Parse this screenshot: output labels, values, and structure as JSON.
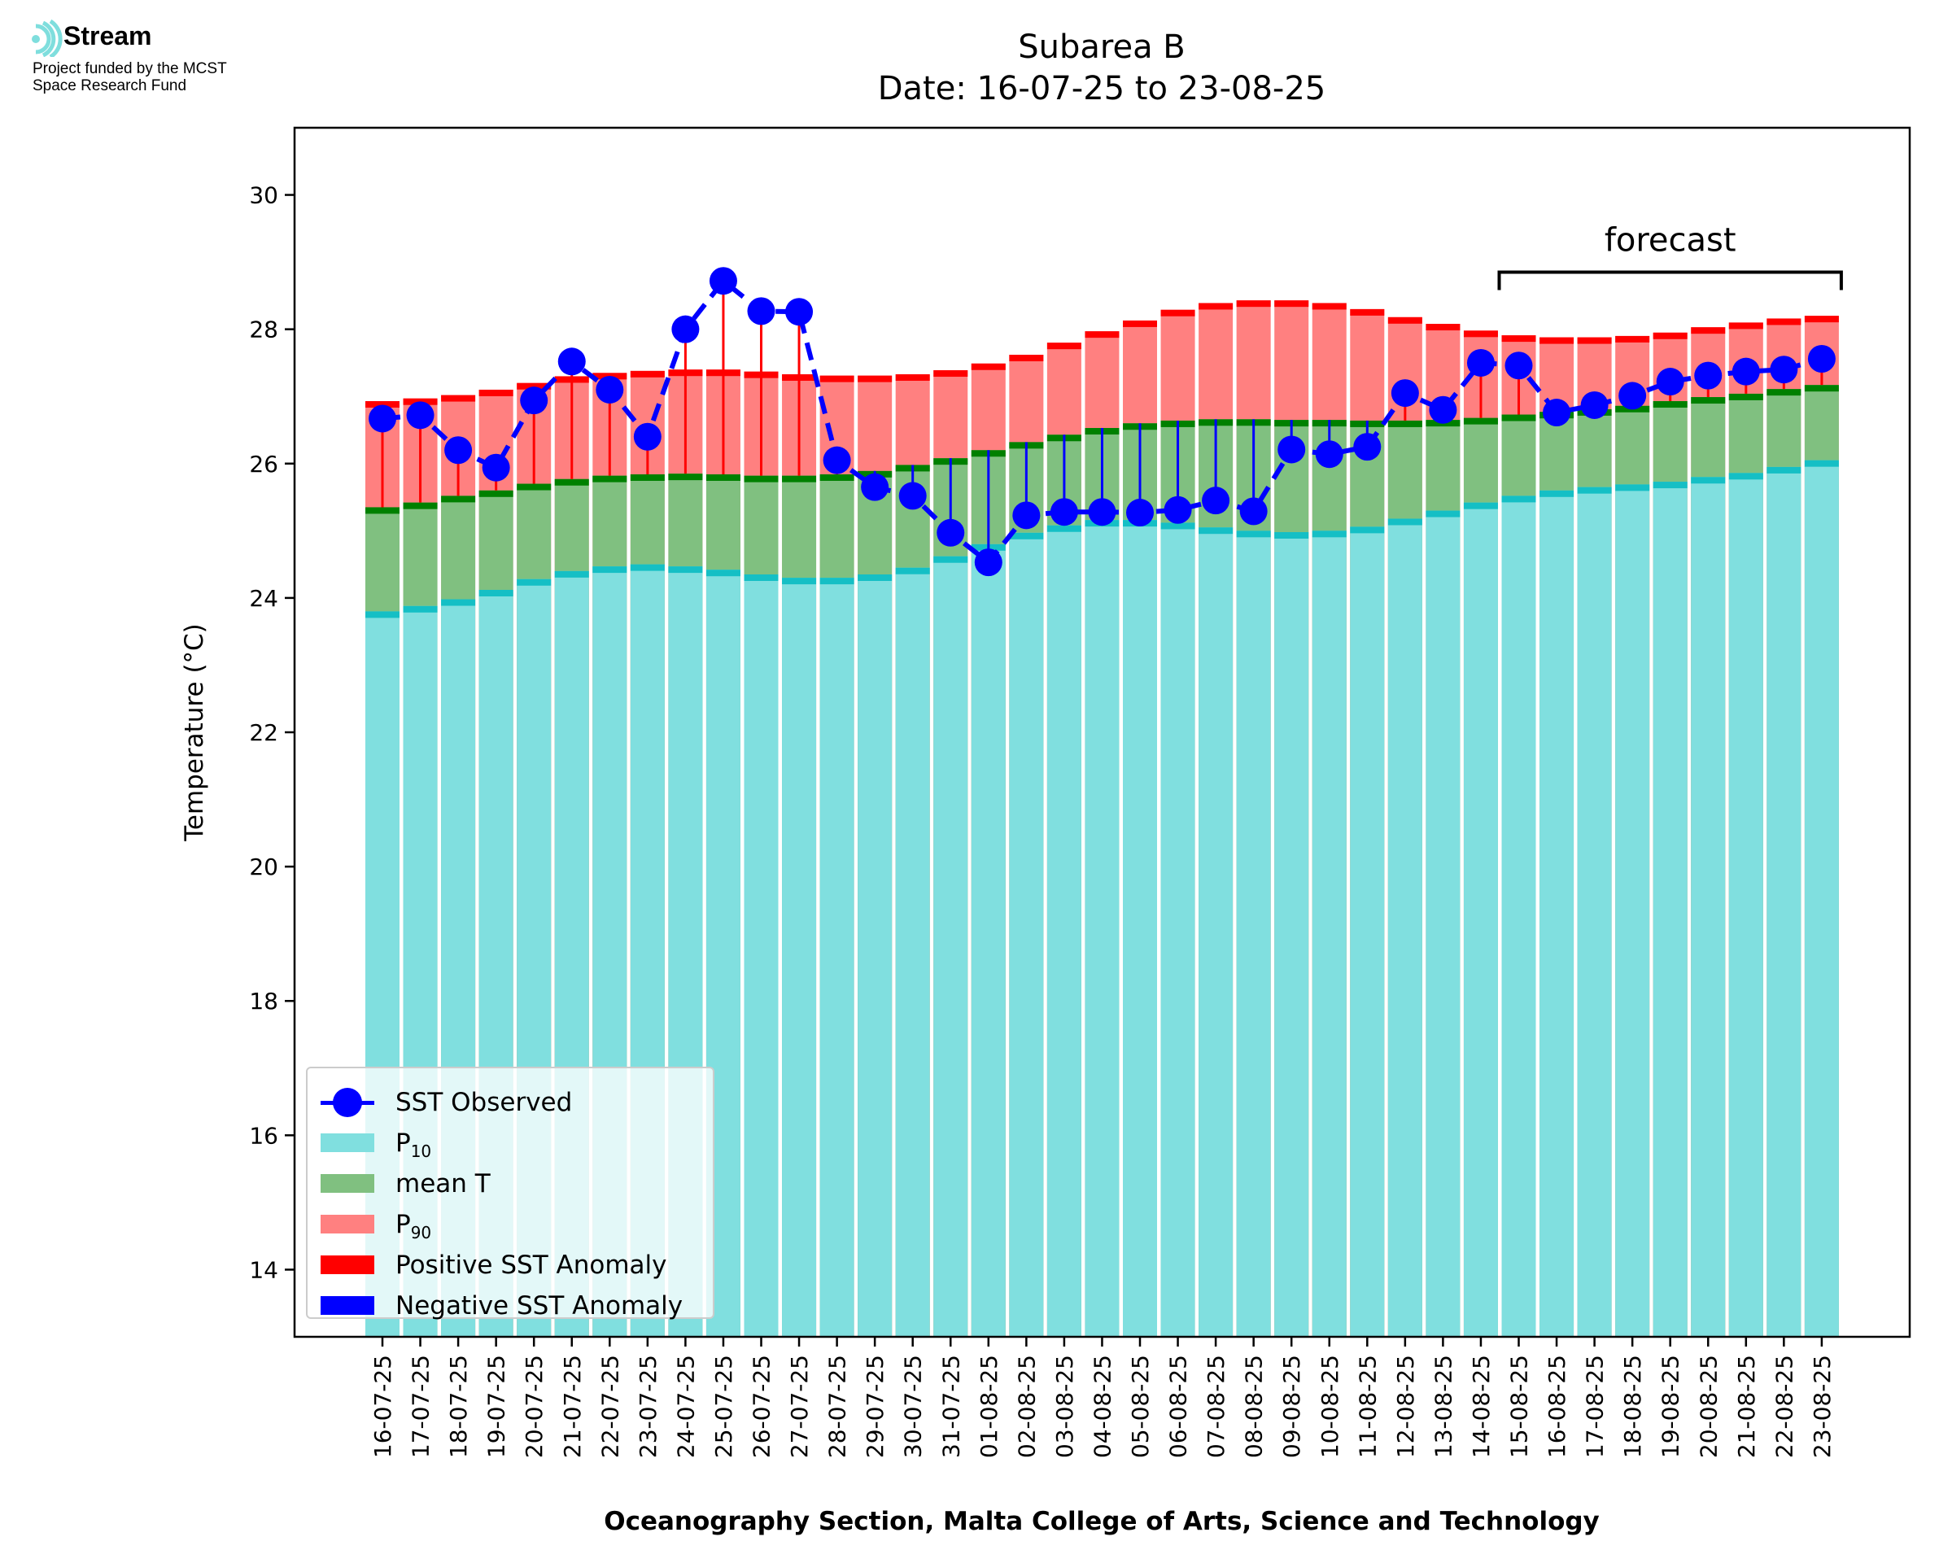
{
  "logo": {
    "brand": "Stream",
    "subtitle": "Project funded by the MCST\nSpace Research Fund",
    "icon": "stream-waves-icon",
    "icon_color": "#7fdedd"
  },
  "chart_data": {
    "type": "bar",
    "title": "Subarea B",
    "subtitle": "Date: 16-07-25 to 23-08-25",
    "xlabel": "Oceanography Section, Malta College of Arts, Science and Technology",
    "ylabel": "Temperature (°C)",
    "ylim": [
      13,
      31
    ],
    "yticks": [
      14,
      16,
      18,
      20,
      22,
      24,
      26,
      28,
      30
    ],
    "grid": false,
    "legend_position": "bottom-left",
    "annotation": {
      "text": "forecast",
      "from": "15-08-25",
      "to": "23-08-25"
    },
    "colors": {
      "p10": "#80dfdf",
      "p10_edge": "#15bfc5",
      "mean": "#80c080",
      "mean_edge": "#008000",
      "p90": "#ff8080",
      "p90_edge": "#ff0000",
      "observed": "#0000ff",
      "positive_anomaly": "#ff0000",
      "negative_anomaly": "#0000ff"
    },
    "categories": [
      "16-07-25",
      "17-07-25",
      "18-07-25",
      "19-07-25",
      "20-07-25",
      "21-07-25",
      "22-07-25",
      "23-07-25",
      "24-07-25",
      "25-07-25",
      "26-07-25",
      "27-07-25",
      "28-07-25",
      "29-07-25",
      "30-07-25",
      "31-07-25",
      "01-08-25",
      "02-08-25",
      "03-08-25",
      "04-08-25",
      "05-08-25",
      "06-08-25",
      "07-08-25",
      "08-08-25",
      "09-08-25",
      "10-08-25",
      "11-08-25",
      "12-08-25",
      "13-08-25",
      "14-08-25",
      "15-08-25",
      "16-08-25",
      "17-08-25",
      "18-08-25",
      "19-08-25",
      "20-08-25",
      "21-08-25",
      "22-08-25",
      "23-08-25"
    ],
    "series": [
      {
        "name": "P10",
        "values": [
          23.8,
          23.88,
          23.98,
          24.12,
          24.28,
          24.4,
          24.47,
          24.5,
          24.47,
          24.42,
          24.35,
          24.3,
          24.3,
          24.35,
          24.45,
          24.62,
          24.8,
          24.97,
          25.08,
          25.16,
          25.16,
          25.12,
          25.05,
          25.0,
          24.98,
          25.0,
          25.06,
          25.18,
          25.3,
          25.42,
          25.52,
          25.6,
          25.65,
          25.69,
          25.73,
          25.8,
          25.86,
          25.95,
          26.05
        ]
      },
      {
        "name": "mean T",
        "values": [
          25.35,
          25.42,
          25.52,
          25.6,
          25.7,
          25.77,
          25.82,
          25.84,
          25.85,
          25.84,
          25.82,
          25.82,
          25.84,
          25.89,
          25.98,
          26.08,
          26.2,
          26.32,
          26.43,
          26.53,
          26.6,
          26.64,
          26.66,
          26.66,
          26.65,
          26.65,
          26.64,
          26.64,
          26.65,
          26.68,
          26.73,
          26.77,
          26.81,
          26.86,
          26.93,
          26.99,
          27.04,
          27.11,
          27.17
        ]
      },
      {
        "name": "P90",
        "values": [
          26.93,
          26.97,
          27.02,
          27.1,
          27.2,
          27.3,
          27.35,
          27.38,
          27.4,
          27.4,
          27.37,
          27.33,
          27.31,
          27.31,
          27.33,
          27.39,
          27.49,
          27.62,
          27.8,
          27.97,
          28.13,
          28.29,
          28.39,
          28.43,
          28.43,
          28.39,
          28.3,
          28.18,
          28.08,
          27.98,
          27.91,
          27.88,
          27.88,
          27.9,
          27.95,
          28.03,
          28.1,
          28.16,
          28.2
        ]
      },
      {
        "name": "SST Observed",
        "values": [
          26.67,
          26.72,
          26.2,
          25.94,
          26.94,
          27.52,
          27.1,
          26.4,
          28.0,
          28.72,
          28.27,
          28.26,
          26.05,
          25.65,
          25.52,
          24.97,
          24.53,
          25.23,
          25.28,
          25.28,
          25.27,
          25.31,
          25.45,
          25.29,
          26.21,
          26.14,
          26.25,
          27.05,
          26.8,
          27.5,
          27.46,
          26.76,
          26.87,
          27.01,
          27.22,
          27.31,
          27.37,
          27.4,
          27.56
        ]
      }
    ],
    "legend": [
      "SST Observed",
      "P",
      "mean T",
      "P",
      "Positive SST Anomaly",
      "Negative SST Anomaly"
    ],
    "legend_subscripts": [
      "",
      "10",
      "",
      "90",
      "",
      ""
    ]
  }
}
